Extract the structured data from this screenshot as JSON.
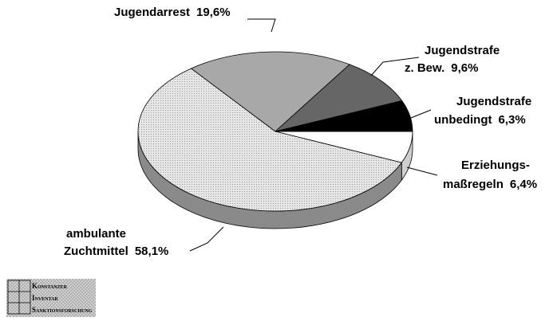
{
  "chart_data": {
    "type": "pie",
    "categories": [
      "Erziehungs-maßregeln",
      "ambulante Zuchtmittel",
      "Jugendarrest",
      "Jugendstrafe z. Bew.",
      "Jugendstrafe unbedingt"
    ],
    "values": [
      6.4,
      58.1,
      19.6,
      9.6,
      6.3
    ],
    "value_labels": [
      "6,4%",
      "58,1%",
      "19,6%",
      "9,6%",
      "6,3%"
    ],
    "colors": [
      "#ffffff",
      "#dcdcdc",
      "#a8a8a8",
      "#666666",
      "#000000"
    ]
  },
  "logo": {
    "lines": [
      "Konstanzer",
      "Inventar",
      "Sanktionsforschung"
    ]
  }
}
